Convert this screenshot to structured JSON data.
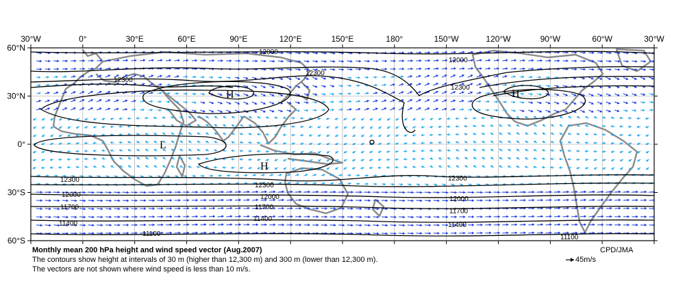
{
  "map": {
    "lon_labels": [
      "30°W",
      "0°",
      "30°E",
      "60°E",
      "90°E",
      "120°E",
      "150°E",
      "180°",
      "150°W",
      "120°W",
      "90°W",
      "60°W",
      "30°W"
    ],
    "lat_labels": [
      "60°N",
      "30°N",
      "0°",
      "30°S",
      "60°S"
    ],
    "contour_labels": {
      "c12000": "12000",
      "c12300": "12300",
      "c11700": "11700",
      "c11400": "11400",
      "c11100": "11100"
    },
    "markers": {
      "high": "H",
      "low": "L"
    },
    "colors": {
      "land": "#8a8a8a",
      "vector_strong": "#1a3de0",
      "vector_weak": "#22a8ee",
      "contour": "#000000",
      "grid": "#9a9a9a"
    }
  },
  "caption": {
    "title": "Monthly mean 200 hPa height and wind speed vector (Aug.2007)",
    "line1": "The contours show height at intervals of 30 m (higher than 12,300 m) and 300 m (lower than 12,300 m).",
    "line2": "The vectors are not shown where wind speed is less than 10 m/s."
  },
  "credit": "CPD/JMA",
  "reference_vector": "45m/s"
}
